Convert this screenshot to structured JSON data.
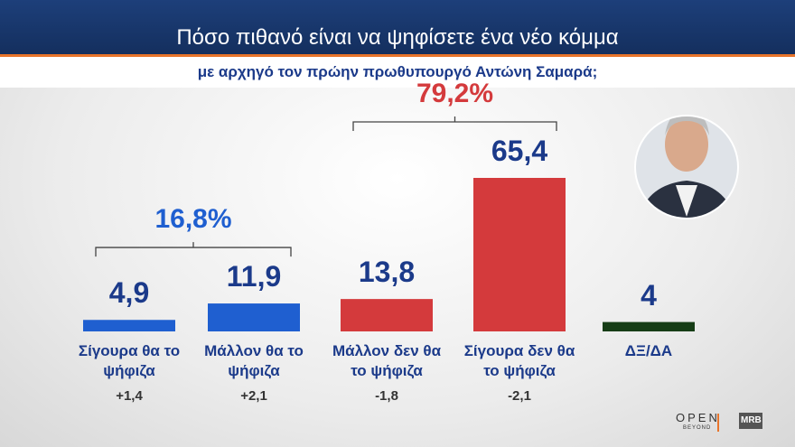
{
  "header": {
    "title": "Πόσο πιθανό είναι να ψηφίσετε ένα νέο κόμμα",
    "subtitle": "με αρχηγό τον πρώην πρωθυπουργό Αντώνη Σαμαρά;"
  },
  "chart_data": {
    "type": "bar",
    "categories": [
      "Σίγουρα θα το ψήφιζα",
      "Μάλλον θα το ψήφιζα",
      "Μάλλον δεν θα το ψήφιζα",
      "Σίγουρα δεν θα το ψήφιζα",
      "ΔΞ/ΔΑ"
    ],
    "values": [
      4.9,
      11.9,
      13.8,
      65.4,
      4
    ],
    "value_labels": [
      "4,9",
      "11,9",
      "13,8",
      "65,4",
      "4"
    ],
    "colors": [
      "#1f5fd0",
      "#1f5fd0",
      "#d43a3c",
      "#d43a3c",
      "#163d16"
    ],
    "changes": [
      "+1,4",
      "+2,1",
      "-1,8",
      "-2,1",
      null
    ],
    "annotations": [
      {
        "text": "16,8%",
        "color": "#1f5fd0"
      },
      {
        "text": "79,2%",
        "color": "#d43a3c"
      }
    ]
  },
  "logos": {
    "open": "OPEN",
    "beyond": "BEYOND",
    "mrb": "MRB"
  }
}
